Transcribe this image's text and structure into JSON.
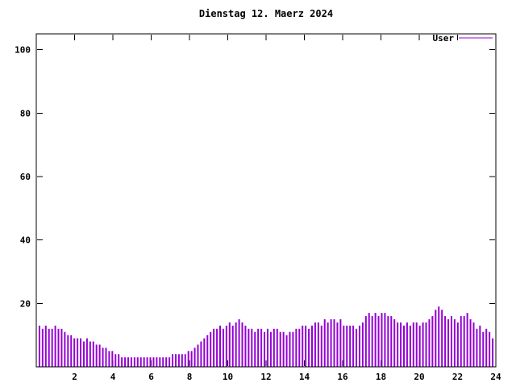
{
  "title": "Dienstag 12. Maerz 2024",
  "legend": {
    "label": "User",
    "position": "top-right"
  },
  "colors": {
    "series": "#9400d3",
    "axis": "#000000",
    "background": "#ffffff"
  },
  "chart_data": {
    "type": "bar",
    "title": "Dienstag 12. Maerz 2024",
    "xlabel": "",
    "ylabel": "",
    "xlim": [
      0,
      24
    ],
    "ylim": [
      0,
      105
    ],
    "x_ticks": [
      2,
      4,
      6,
      8,
      10,
      12,
      14,
      16,
      18,
      20,
      22,
      24
    ],
    "y_ticks": [
      20,
      40,
      60,
      80,
      100
    ],
    "grid": false,
    "legend_position": "top-right",
    "x_unit": "hour of day",
    "sample_interval_hours": 0.1667,
    "series": [
      {
        "name": "User",
        "color": "#9400d3",
        "style": "impulses",
        "values": [
          13,
          12,
          13,
          12,
          12,
          13,
          12,
          12,
          11,
          10,
          10,
          9,
          9,
          9,
          8,
          9,
          8,
          8,
          7,
          7,
          6,
          6,
          5,
          5,
          4,
          4,
          3,
          3,
          3,
          3,
          3,
          3,
          3,
          3,
          3,
          3,
          3,
          3,
          3,
          3,
          3,
          3,
          4,
          4,
          4,
          4,
          4,
          5,
          5,
          6,
          7,
          8,
          9,
          10,
          11,
          12,
          12,
          13,
          12,
          13,
          14,
          13,
          14,
          15,
          14,
          13,
          12,
          12,
          11,
          12,
          12,
          11,
          12,
          11,
          12,
          12,
          11,
          11,
          10,
          11,
          11,
          12,
          12,
          13,
          13,
          12,
          13,
          14,
          14,
          13,
          15,
          14,
          15,
          15,
          14,
          15,
          13,
          13,
          13,
          13,
          12,
          13,
          14,
          16,
          17,
          16,
          17,
          16,
          17,
          17,
          16,
          16,
          15,
          14,
          14,
          13,
          14,
          13,
          14,
          14,
          13,
          14,
          14,
          15,
          16,
          18,
          19,
          18,
          16,
          15,
          16,
          15,
          14,
          16,
          16,
          17,
          15,
          14,
          12,
          13,
          11,
          12,
          11,
          9
        ]
      }
    ]
  }
}
